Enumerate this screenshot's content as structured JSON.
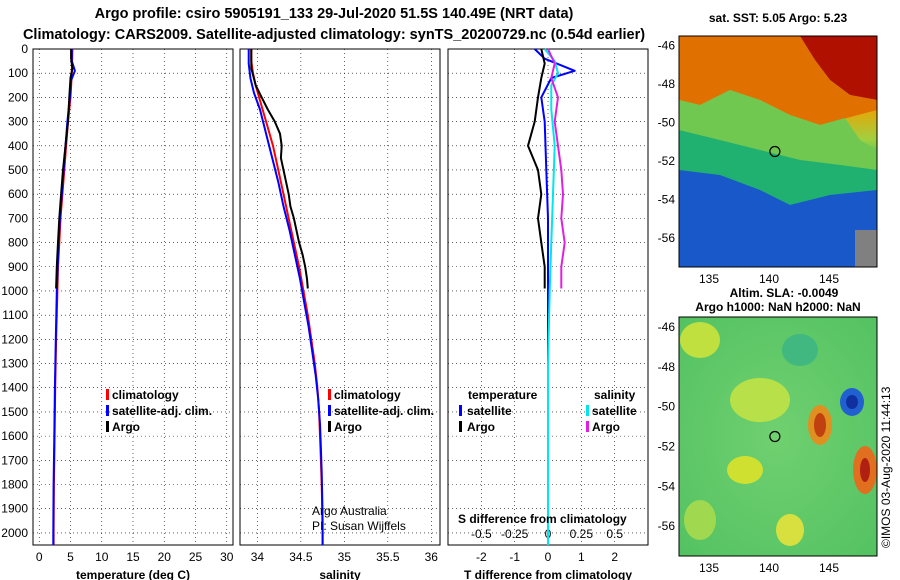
{
  "header": {
    "title1": "Argo profile: csiro 5905191_133 29-Jul-2020 51.5S 140.49E (NRT data)",
    "title2": "Climatology: CARS2009. Satellite-adjusted climatology: synTS_20200729.nc (0.54d earlier)"
  },
  "colors": {
    "climatology": "#ff0000",
    "satellite": "#0000ff",
    "argo": "#000000",
    "salinity_satellite": "#00e5ee",
    "salinity_argo": "#e020e0"
  },
  "depth_axis": {
    "range": [
      0,
      2050
    ],
    "ticks": [
      0,
      100,
      200,
      300,
      400,
      500,
      600,
      700,
      800,
      900,
      1000,
      1100,
      1200,
      1300,
      1400,
      1500,
      1600,
      1700,
      1800,
      1900,
      2000
    ]
  },
  "legends": {
    "temperature": {
      "climatology": "climatology",
      "satellite": "satellite-adj. clim.",
      "argo": "Argo"
    },
    "salinity": {
      "climatology": "climatology",
      "satellite": "satellite-adj. clim.",
      "argo": "Argo"
    },
    "difference": {
      "temperature_head": "temperature",
      "salinity_head": "salinity",
      "satellite": "satellite",
      "argo": "Argo"
    }
  },
  "notes": {
    "credit1": "Argo Australia",
    "credit2": "PI: Susan Wijffels",
    "s_diff_title": "S difference from climatology",
    "imos": "©IMOS 03-Aug-2020 11:44:13"
  },
  "maps": {
    "sst_title": "sat. SST: 5.05 Argo: 5.23",
    "sla_title1": "Altim. SLA: -0.0049",
    "sla_title2": "Argo h1000: NaN h2000: NaN",
    "lon_ticks": [
      135,
      140,
      145
    ],
    "lat_ticks": [
      -46,
      -48,
      -50,
      -52,
      -54,
      -56
    ],
    "lon_range": [
      132.5,
      149
    ],
    "lat_range": [
      -45.5,
      -57.5
    ],
    "argo_position": {
      "lon": 140.49,
      "lat": -51.5
    }
  },
  "chart_data": [
    {
      "type": "line",
      "xlabel": "temperature (deg C)",
      "ylabel": "",
      "xlim": [
        -1,
        31
      ],
      "ylim": [
        2050,
        0
      ],
      "xticks": [
        0,
        5,
        10,
        15,
        20,
        25,
        30
      ],
      "series": [
        {
          "name": "climatology",
          "color": "#ff0000",
          "points": [
            [
              5.3,
              0
            ],
            [
              5.2,
              100
            ],
            [
              5.0,
              200
            ],
            [
              4.6,
              300
            ],
            [
              4.3,
              400
            ],
            [
              4.0,
              500
            ],
            [
              3.7,
              600
            ],
            [
              3.4,
              700
            ],
            [
              3.2,
              800
            ],
            [
              3.0,
              900
            ],
            [
              2.9,
              1000
            ],
            [
              2.7,
              1200
            ],
            [
              2.55,
              1400
            ],
            [
              2.45,
              1600
            ],
            [
              2.35,
              1800
            ],
            [
              2.3,
              2000
            ],
            [
              2.3,
              2050
            ]
          ]
        },
        {
          "name": "satellite-adj. clim.",
          "color": "#0000ff",
          "points": [
            [
              5.2,
              0
            ],
            [
              5.2,
              50
            ],
            [
              5.7,
              90
            ],
            [
              5.1,
              130
            ],
            [
              4.9,
              200
            ],
            [
              4.5,
              300
            ],
            [
              4.2,
              400
            ],
            [
              3.9,
              500
            ],
            [
              3.6,
              600
            ],
            [
              3.3,
              700
            ],
            [
              3.1,
              800
            ],
            [
              2.95,
              900
            ],
            [
              2.8,
              1000
            ],
            [
              2.65,
              1200
            ],
            [
              2.5,
              1400
            ],
            [
              2.4,
              1600
            ],
            [
              2.3,
              1800
            ],
            [
              2.25,
              2000
            ],
            [
              2.25,
              2050
            ]
          ]
        },
        {
          "name": "Argo",
          "color": "#000000",
          "points": [
            [
              5.1,
              0
            ],
            [
              5.1,
              40
            ],
            [
              5.3,
              80
            ],
            [
              5.0,
              120
            ],
            [
              4.8,
              200
            ],
            [
              4.6,
              300
            ],
            [
              4.2,
              400
            ],
            [
              3.8,
              500
            ],
            [
              3.5,
              600
            ],
            [
              3.2,
              700
            ],
            [
              3.0,
              800
            ],
            [
              2.8,
              900
            ],
            [
              2.7,
              990
            ]
          ]
        }
      ]
    },
    {
      "type": "line",
      "xlabel": "salinity",
      "ylabel": "",
      "xlim": [
        33.8,
        36.1
      ],
      "ylim": [
        2050,
        0
      ],
      "xticks": [
        34,
        34.5,
        35,
        35.5,
        36
      ],
      "series": [
        {
          "name": "climatology",
          "color": "#ff0000",
          "points": [
            [
              33.93,
              0
            ],
            [
              33.93,
              50
            ],
            [
              33.95,
              100
            ],
            [
              33.98,
              150
            ],
            [
              34.02,
              200
            ],
            [
              34.1,
              300
            ],
            [
              34.18,
              400
            ],
            [
              34.24,
              500
            ],
            [
              34.3,
              600
            ],
            [
              34.36,
              700
            ],
            [
              34.42,
              800
            ],
            [
              34.48,
              900
            ],
            [
              34.53,
              1000
            ],
            [
              34.58,
              1100
            ],
            [
              34.62,
              1200
            ],
            [
              34.66,
              1300
            ],
            [
              34.69,
              1400
            ],
            [
              34.71,
              1500
            ],
            [
              34.72,
              1600
            ],
            [
              34.73,
              1700
            ],
            [
              34.74,
              1800
            ],
            [
              34.745,
              1900
            ],
            [
              34.75,
              2000
            ],
            [
              34.75,
              2050
            ]
          ]
        },
        {
          "name": "satellite-adj. clim.",
          "color": "#0000ff",
          "points": [
            [
              33.9,
              0
            ],
            [
              33.9,
              60
            ],
            [
              33.92,
              120
            ],
            [
              33.96,
              180
            ],
            [
              34.03,
              250
            ],
            [
              34.1,
              350
            ],
            [
              34.17,
              450
            ],
            [
              34.24,
              550
            ],
            [
              34.3,
              650
            ],
            [
              34.37,
              750
            ],
            [
              34.43,
              850
            ],
            [
              34.49,
              950
            ],
            [
              34.54,
              1050
            ],
            [
              34.59,
              1150
            ],
            [
              34.63,
              1250
            ],
            [
              34.67,
              1350
            ],
            [
              34.7,
              1450
            ],
            [
              34.72,
              1550
            ],
            [
              34.73,
              1650
            ],
            [
              34.74,
              1750
            ],
            [
              34.745,
              1850
            ],
            [
              34.75,
              1950
            ],
            [
              34.75,
              2050
            ]
          ]
        },
        {
          "name": "Argo",
          "color": "#000000",
          "points": [
            [
              33.93,
              0
            ],
            [
              33.93,
              80
            ],
            [
              33.98,
              150
            ],
            [
              34.05,
              200
            ],
            [
              34.12,
              250
            ],
            [
              34.2,
              300
            ],
            [
              34.26,
              350
            ],
            [
              34.28,
              400
            ],
            [
              34.27,
              450
            ],
            [
              34.3,
              500
            ],
            [
              34.33,
              550
            ],
            [
              34.36,
              600
            ],
            [
              34.38,
              650
            ],
            [
              34.42,
              700
            ],
            [
              34.45,
              750
            ],
            [
              34.48,
              800
            ],
            [
              34.52,
              850
            ],
            [
              34.55,
              900
            ],
            [
              34.57,
              950
            ],
            [
              34.58,
              990
            ]
          ]
        }
      ]
    },
    {
      "type": "line",
      "xlabel": "T difference from climatology",
      "ylabel": "",
      "xlim": [
        -3,
        3
      ],
      "ylim": [
        2050,
        0
      ],
      "xticks": [
        -2,
        -1,
        0,
        1,
        2
      ],
      "s_xticks_labels": [
        "-0.5",
        "-0.25",
        "0",
        "0.25",
        "0.5"
      ],
      "s_xticks_pos": [
        -2,
        -1,
        0,
        1,
        2
      ],
      "series": [
        {
          "name": "temperature satellite",
          "color": "#0000ff",
          "points": [
            [
              -0.4,
              0
            ],
            [
              -0.1,
              40
            ],
            [
              0.8,
              90
            ],
            [
              0.1,
              120
            ],
            [
              -0.2,
              200
            ],
            [
              -0.1,
              300
            ],
            [
              -0.05,
              500
            ],
            [
              0,
              700
            ],
            [
              0,
              1000
            ],
            [
              0,
              1500
            ],
            [
              0,
              2050
            ]
          ]
        },
        {
          "name": "temperature Argo",
          "color": "#000000",
          "points": [
            [
              -0.2,
              0
            ],
            [
              -0.1,
              60
            ],
            [
              -0.2,
              120
            ],
            [
              -0.3,
              200
            ],
            [
              -0.4,
              300
            ],
            [
              -0.6,
              400
            ],
            [
              -0.3,
              500
            ],
            [
              -0.2,
              600
            ],
            [
              -0.3,
              700
            ],
            [
              -0.2,
              800
            ],
            [
              -0.1,
              900
            ],
            [
              -0.1,
              990
            ]
          ]
        },
        {
          "name": "salinity satellite",
          "color": "#00e5ee",
          "points": [
            [
              -0.1,
              0
            ],
            [
              0.2,
              50
            ],
            [
              0.3,
              100
            ],
            [
              0.1,
              150
            ],
            [
              0.1,
              250
            ],
            [
              0.2,
              400
            ],
            [
              0.15,
              600
            ],
            [
              0.1,
              800
            ],
            [
              0.05,
              1000
            ],
            [
              0,
              1300
            ],
            [
              0,
              1600
            ],
            [
              0,
              2050
            ]
          ]
        },
        {
          "name": "salinity Argo",
          "color": "#e020e0",
          "points": [
            [
              0,
              0
            ],
            [
              0.2,
              60
            ],
            [
              0.1,
              120
            ],
            [
              0.3,
              200
            ],
            [
              0.2,
              300
            ],
            [
              0.3,
              400
            ],
            [
              0.4,
              500
            ],
            [
              0.45,
              600
            ],
            [
              0.4,
              700
            ],
            [
              0.5,
              800
            ],
            [
              0.4,
              900
            ],
            [
              0.4,
              990
            ]
          ]
        }
      ]
    }
  ]
}
